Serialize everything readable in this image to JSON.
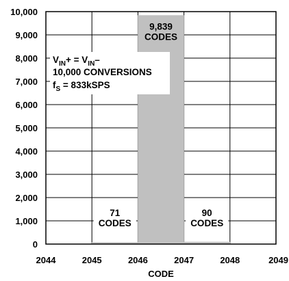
{
  "chart_data": {
    "type": "bar",
    "xlabel": "CODE",
    "ylabel": "",
    "title": "",
    "x_ticks": [
      "2044",
      "2045",
      "2046",
      "2047",
      "2048",
      "2049"
    ],
    "y_ticks": [
      "0",
      "1,000",
      "2,000",
      "3,000",
      "4,000",
      "5,000",
      "6,000",
      "7,000",
      "8,000",
      "9,000",
      "10,000"
    ],
    "xlim": [
      2044,
      2049
    ],
    "ylim": [
      0,
      10000
    ],
    "grid": true,
    "bars": [
      {
        "x_start": 2045,
        "x_end": 2046,
        "value": 71,
        "label": [
          "71",
          "CODES"
        ]
      },
      {
        "x_start": 2046,
        "x_end": 2047,
        "value": 9839,
        "label": [
          "9,839",
          "CODES"
        ]
      },
      {
        "x_start": 2047,
        "x_end": 2048,
        "value": 90,
        "label": [
          "90",
          "CODES"
        ]
      }
    ],
    "bar_color": "#c0c0c0",
    "annotation": {
      "line1_main": "V",
      "line1_sub1": "IN",
      "line1_mid": "+ = V",
      "line1_sub2": "IN",
      "line1_end": "–",
      "line2": "10,000 CONVERSIONS",
      "line3_main": "f",
      "line3_sub": "S",
      "line3_end": " = 833kSPS"
    }
  }
}
